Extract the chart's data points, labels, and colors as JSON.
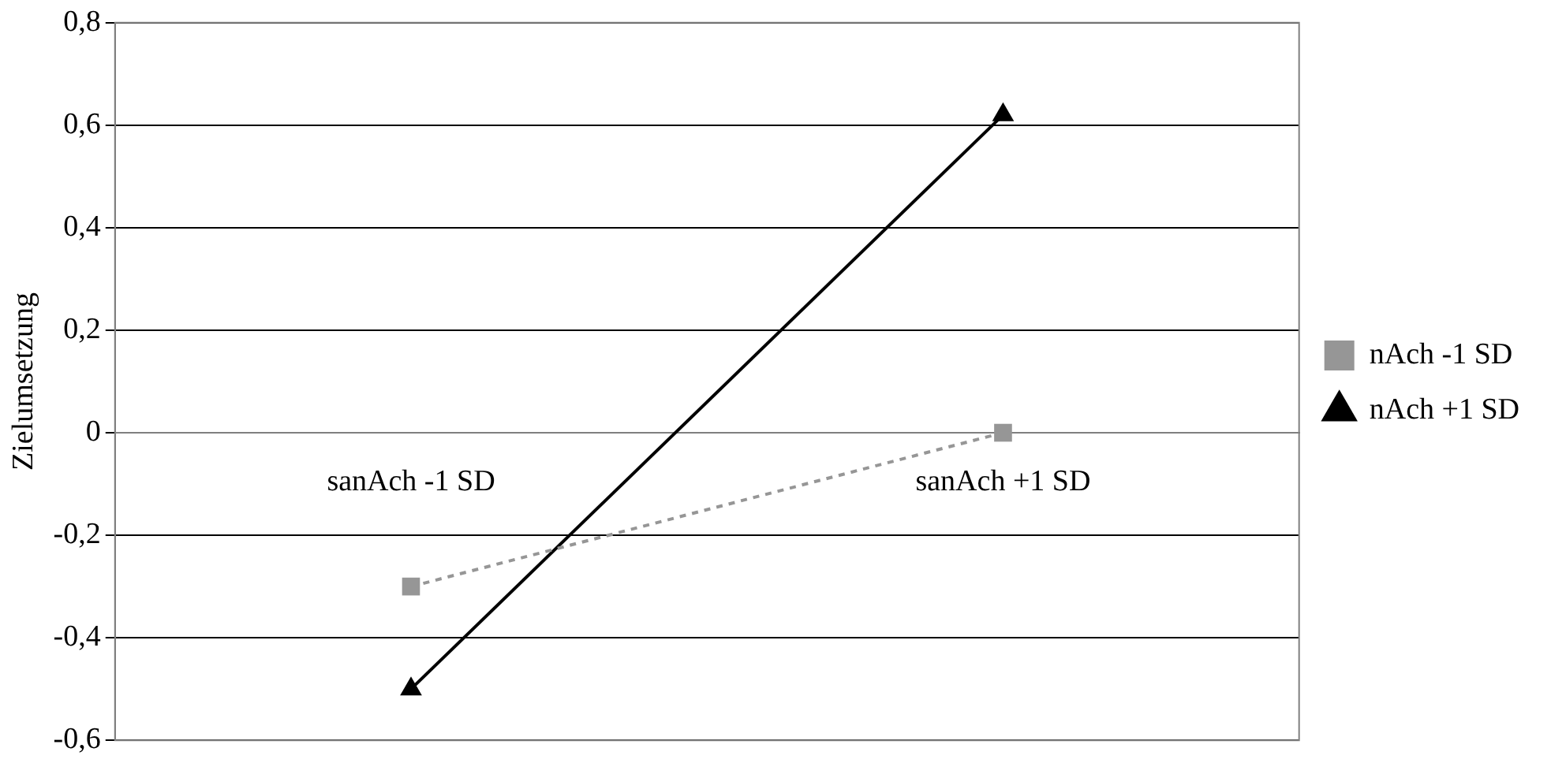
{
  "chart_data": {
    "type": "line",
    "ylabel": "Zielumsetzung",
    "categories": [
      "sanAch -1 SD",
      "sanAch +1 SD"
    ],
    "series": [
      {
        "name": "nAch -1 SD",
        "color": "#969696",
        "values": [
          -0.3,
          0
        ],
        "marker": "square",
        "line_style": "dashed"
      },
      {
        "name": "nAch +1 SD",
        "color": "#000000",
        "values": [
          -0.5,
          0.62
        ],
        "marker": "triangle",
        "line_style": "solid"
      }
    ],
    "ylim": [
      -0.6,
      0.8
    ],
    "yticks": [
      {
        "value": -0.6,
        "label": "-0,6"
      },
      {
        "value": -0.4,
        "label": "-0,4"
      },
      {
        "value": -0.2,
        "label": "-0,2"
      },
      {
        "value": 0,
        "label": "0"
      },
      {
        "value": 0.2,
        "label": "0,2"
      },
      {
        "value": 0.4,
        "label": "0,4"
      },
      {
        "value": 0.6,
        "label": "0,6"
      },
      {
        "value": 0.8,
        "label": "0,8"
      }
    ],
    "grid": "y",
    "legend": "right"
  }
}
